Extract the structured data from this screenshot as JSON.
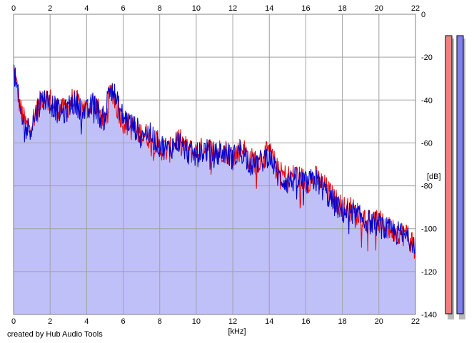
{
  "credit": "created by Hub Audio Tools",
  "chart_data": {
    "type": "area",
    "xlabel": "[kHz]",
    "ylabel": "[dB]",
    "xlim": [
      0,
      22
    ],
    "ylim": [
      -140,
      0
    ],
    "xticks": [
      0,
      2,
      4,
      6,
      8,
      10,
      12,
      14,
      16,
      18,
      20,
      22
    ],
    "yticks": [
      0,
      -20,
      -40,
      -60,
      -80,
      -100,
      -120,
      -140
    ],
    "grid": true,
    "colors": {
      "left": "#ee0000",
      "right": "#0000cc",
      "fill": "#c0c0f8",
      "meter_left": "#f08080",
      "meter_right": "#8080f0"
    },
    "x": [
      0,
      0.2,
      0.4,
      0.7,
      1.0,
      1.3,
      1.6,
      2.0,
      2.4,
      2.8,
      3.2,
      3.6,
      4.0,
      4.4,
      4.8,
      5.0,
      5.2,
      5.4,
      5.6,
      6.0,
      6.4,
      6.8,
      7.2,
      7.6,
      8.0,
      8.5,
      9.0,
      9.5,
      10.0,
      10.5,
      11.0,
      11.5,
      12.0,
      12.5,
      13.0,
      13.5,
      14.0,
      14.5,
      15.0,
      15.5,
      16.0,
      16.5,
      17.0,
      17.5,
      18.0,
      18.5,
      19.0,
      19.5,
      20.0,
      20.5,
      21.0,
      21.5,
      22.0
    ],
    "series": [
      {
        "values": [
          -25,
          -35,
          -45,
          -52,
          -50,
          -45,
          -38,
          -40,
          -44,
          -45,
          -40,
          -42,
          -45,
          -40,
          -48,
          -50,
          -40,
          -35,
          -42,
          -50,
          -52,
          -55,
          -56,
          -58,
          -62,
          -64,
          -58,
          -63,
          -65,
          -62,
          -64,
          -63,
          -66,
          -62,
          -68,
          -68,
          -64,
          -74,
          -76,
          -75,
          -78,
          -76,
          -80,
          -86,
          -90,
          -91,
          -94,
          -96,
          -97,
          -100,
          -101,
          -103,
          -108
        ]
      },
      {
        "values": [
          -26,
          -36,
          -47,
          -54,
          -52,
          -44,
          -39,
          -41,
          -45,
          -46,
          -41,
          -43,
          -46,
          -41,
          -49,
          -48,
          -36,
          -33,
          -40,
          -48,
          -51,
          -54,
          -55,
          -57,
          -61,
          -63,
          -59,
          -64,
          -66,
          -63,
          -66,
          -64,
          -67,
          -63,
          -70,
          -69,
          -65,
          -76,
          -78,
          -77,
          -79,
          -77,
          -82,
          -88,
          -92,
          -93,
          -95,
          -97,
          -98,
          -101,
          -102,
          -104,
          -106
        ]
      }
    ],
    "meters": {
      "left": -140,
      "right": -140
    }
  }
}
